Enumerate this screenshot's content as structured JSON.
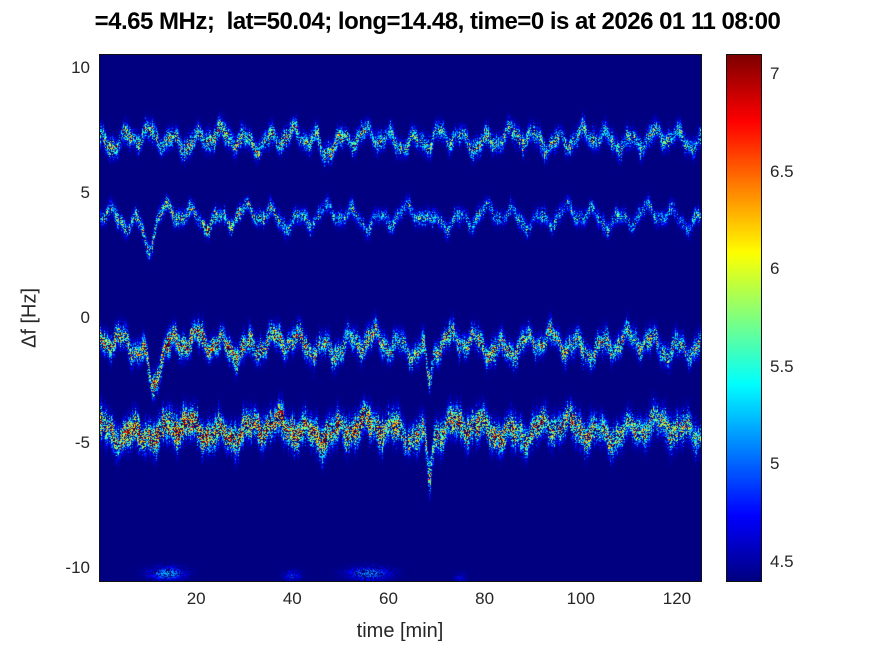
{
  "figure": {
    "title": "=4.65 MHz;  lat=50.04; long=14.48, time=0 is at 2026 01 11 08:00"
  },
  "colors": {
    "background": "#ffffff",
    "axis_text": "#262626",
    "axis_line": "#000000",
    "plot_background_jet_low": "#00008b"
  },
  "chart_data": {
    "type": "heatmap",
    "title": "=4.65 MHz;  lat=50.04; long=14.48, time=0 is at 2026 01 11 08:00",
    "xlabel": "time [min]",
    "ylabel": "Δf [Hz]",
    "xlim": [
      0,
      125
    ],
    "ylim": [
      -10.5,
      10.5
    ],
    "xticks": [
      {
        "value": 20,
        "label": "20"
      },
      {
        "value": 40,
        "label": "40"
      },
      {
        "value": 60,
        "label": "60"
      },
      {
        "value": 80,
        "label": "80"
      },
      {
        "value": 100,
        "label": "100"
      },
      {
        "value": 120,
        "label": "120"
      }
    ],
    "yticks": [
      {
        "value": 10,
        "label": "10"
      },
      {
        "value": 5,
        "label": "5"
      },
      {
        "value": 0,
        "label": "0"
      },
      {
        "value": -5,
        "label": "-5"
      },
      {
        "value": -10,
        "label": "-10"
      }
    ],
    "colorbar": {
      "colormap": "jet",
      "min": 4.4,
      "max": 7.1,
      "ticks": [
        {
          "value": 7,
          "label": "7"
        },
        {
          "value": 6.5,
          "label": "6.5"
        },
        {
          "value": 6,
          "label": "6"
        },
        {
          "value": 5.5,
          "label": "5.5"
        },
        {
          "value": 5,
          "label": "5"
        },
        {
          "value": 4.5,
          "label": "4.5"
        }
      ]
    },
    "background_value": 4.4,
    "bands": [
      {
        "name": "doppler-trace-plus7hz",
        "center": 7.15,
        "sigma": 0.22,
        "strength": 2.0,
        "wiggle": [
          {
            "a": 0.28,
            "f": 0.2,
            "p": 1.2
          },
          {
            "a": 0.18,
            "f": 0.065,
            "p": 4.0
          },
          {
            "a": 0.1,
            "f": 0.45,
            "p": 0.3
          }
        ],
        "dips": [
          {
            "t": 46.5,
            "depth": 0.5,
            "w": 0.8
          },
          {
            "t": 69.0,
            "depth": 0.4,
            "w": 0.5
          }
        ],
        "envelope": [
          [
            0,
            1.1
          ],
          [
            10,
            1.2
          ],
          [
            16,
            1.15
          ],
          [
            24,
            1.25
          ],
          [
            32,
            1.1
          ],
          [
            40,
            1.05
          ],
          [
            48,
            1.1
          ],
          [
            58,
            0.95
          ],
          [
            68,
            0.9
          ],
          [
            78,
            1.0
          ],
          [
            90,
            0.95
          ],
          [
            100,
            1.0
          ],
          [
            112,
            0.9
          ],
          [
            125,
            0.9
          ]
        ]
      },
      {
        "name": "doppler-trace-plus4hz",
        "center": 4.05,
        "sigma": 0.18,
        "strength": 1.8,
        "wiggle": [
          {
            "a": 0.3,
            "f": 0.18,
            "p": 5.0
          },
          {
            "a": 0.2,
            "f": 0.06,
            "p": 2.2
          },
          {
            "a": 0.1,
            "f": 0.42,
            "p": 1.9
          }
        ],
        "dips": [
          {
            "t": 10.0,
            "depth": 1.1,
            "w": 1.4
          },
          {
            "t": 69.0,
            "depth": 0.5,
            "w": 0.6
          }
        ],
        "envelope": [
          [
            0,
            1.0
          ],
          [
            8,
            1.1
          ],
          [
            14,
            1.25
          ],
          [
            22,
            1.3
          ],
          [
            30,
            1.15
          ],
          [
            40,
            1.0
          ],
          [
            50,
            0.8
          ],
          [
            60,
            0.75
          ],
          [
            72,
            0.9
          ],
          [
            82,
            0.85
          ],
          [
            95,
            0.8
          ],
          [
            108,
            0.85
          ],
          [
            118,
            0.75
          ],
          [
            125,
            0.75
          ]
        ]
      },
      {
        "name": "doppler-trace-minus1hz",
        "center": -1.05,
        "sigma": 0.26,
        "strength": 2.3,
        "wiggle": [
          {
            "a": 0.33,
            "f": 0.19,
            "p": 2.5
          },
          {
            "a": 0.22,
            "f": 0.055,
            "p": 1.0
          },
          {
            "a": 0.12,
            "f": 0.5,
            "p": 3.3
          }
        ],
        "dips": [
          {
            "t": 11.0,
            "depth": 1.5,
            "w": 1.3
          },
          {
            "t": 68.5,
            "depth": 1.4,
            "w": 0.8
          }
        ],
        "envelope": [
          [
            0,
            1.3
          ],
          [
            6,
            1.2
          ],
          [
            11,
            1.4
          ],
          [
            18,
            1.35
          ],
          [
            24,
            1.3
          ],
          [
            32,
            1.2
          ],
          [
            42,
            1.05
          ],
          [
            55,
            0.95
          ],
          [
            68,
            0.9
          ],
          [
            80,
            1.05
          ],
          [
            90,
            0.95
          ],
          [
            105,
            1.0
          ],
          [
            118,
            0.9
          ],
          [
            125,
            0.9
          ]
        ]
      },
      {
        "name": "doppler-trace-minus4p5hz",
        "center": -4.45,
        "sigma": 0.34,
        "strength": 2.55,
        "wiggle": [
          {
            "a": 0.28,
            "f": 0.165,
            "p": 0.8
          },
          {
            "a": 0.22,
            "f": 0.05,
            "p": 2.9
          },
          {
            "a": 0.12,
            "f": 0.4,
            "p": 1.7
          }
        ],
        "dips": [
          {
            "t": 68.5,
            "depth": 1.8,
            "w": 0.7
          },
          {
            "t": 12.0,
            "depth": 0.6,
            "w": 1.0
          }
        ],
        "envelope": [
          [
            0,
            1.15
          ],
          [
            8,
            1.35
          ],
          [
            18,
            1.4
          ],
          [
            28,
            1.3
          ],
          [
            36,
            1.35
          ],
          [
            45,
            1.2
          ],
          [
            55,
            1.25
          ],
          [
            63,
            1.0
          ],
          [
            68,
            0.95
          ],
          [
            78,
            1.3
          ],
          [
            88,
            1.1
          ],
          [
            100,
            1.0
          ],
          [
            115,
            0.95
          ],
          [
            125,
            0.95
          ]
        ]
      }
    ],
    "spots": [
      {
        "t": 14,
        "df": -10.2,
        "rt": 2.5,
        "rdf": 0.18,
        "value": 5.4
      },
      {
        "t": 40,
        "df": -10.3,
        "rt": 1.2,
        "rdf": 0.15,
        "value": 5.0
      },
      {
        "t": 56,
        "df": -10.2,
        "rt": 3.0,
        "rdf": 0.18,
        "value": 5.3
      },
      {
        "t": 75,
        "df": -10.35,
        "rt": 0.8,
        "rdf": 0.12,
        "value": 4.9
      }
    ]
  }
}
